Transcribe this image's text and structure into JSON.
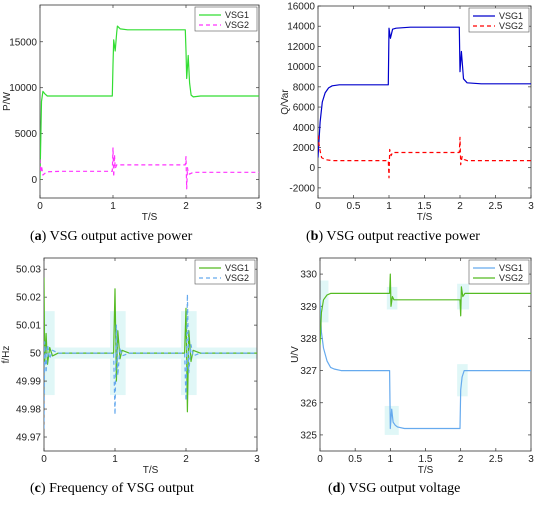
{
  "captions": [
    {
      "letter": "a",
      "text": "VSG output active power"
    },
    {
      "letter": "b",
      "text": "VSG output reactive power"
    },
    {
      "letter": "c",
      "text": "Frequency of VSG output"
    },
    {
      "letter": "d",
      "text": "VSG output voltage"
    }
  ],
  "colors": {
    "green": "#33dd33",
    "magenta": "#ff33ff",
    "blue": "#0000cc",
    "red": "#ff0000",
    "green_dark": "#55bb22",
    "light_blue": "#66aaee"
  },
  "chart_data": [
    {
      "type": "line",
      "xlabel": "T/S",
      "ylabel": "P/W",
      "xlim": [
        0,
        3
      ],
      "ylim": [
        -2000,
        19000
      ],
      "xticks": [
        "0",
        "1",
        "2",
        "3"
      ],
      "xtick_values": [
        0,
        1,
        2,
        3
      ],
      "yticks": [
        "0",
        "5000",
        "10000",
        "15000"
      ],
      "ytick_values": [
        0,
        5000,
        10000,
        15000
      ],
      "legend_position": "top-right",
      "series": [
        {
          "name": "VSG1",
          "color": "#33dd33",
          "dash": "solid",
          "x": [
            0,
            0.02,
            0.04,
            0.07,
            0.1,
            0.2,
            0.6,
            0.99,
            1.0,
            1.01,
            1.03,
            1.05,
            1.06,
            1.1,
            1.2,
            1.6,
            1.99,
            2.0,
            2.01,
            2.03,
            2.05,
            2.07,
            2.1,
            2.2,
            2.6,
            3.0
          ],
          "y": [
            0,
            8500,
            9600,
            9300,
            9100,
            9100,
            9100,
            9100,
            12500,
            15200,
            14000,
            16000,
            16700,
            16400,
            16300,
            16300,
            16300,
            14000,
            11000,
            13500,
            10500,
            9200,
            9000,
            9100,
            9100,
            9100
          ]
        },
        {
          "name": "VSG2",
          "color": "#ff33ff",
          "dash": "dashed",
          "x": [
            0,
            0.01,
            0.02,
            0.04,
            0.07,
            0.1,
            0.3,
            0.6,
            0.99,
            1.0,
            1.01,
            1.02,
            1.03,
            1.05,
            1.1,
            1.3,
            1.6,
            1.99,
            2.0,
            2.01,
            2.02,
            2.03,
            2.05,
            2.1,
            2.4,
            2.7,
            3.0
          ],
          "y": [
            2200,
            800,
            1500,
            500,
            700,
            850,
            900,
            900,
            900,
            3500,
            300,
            2700,
            1200,
            1600,
            1600,
            1600,
            1600,
            1600,
            2500,
            -1000,
            1300,
            700,
            600,
            800,
            800,
            800,
            800
          ]
        }
      ]
    },
    {
      "type": "line",
      "xlabel": "T/S",
      "ylabel": "Q/Var",
      "xlim": [
        0,
        3
      ],
      "ylim": [
        -3000,
        16000
      ],
      "xticks": [
        "0",
        "0.5",
        "1",
        "1.5",
        "2",
        "2.5",
        "3"
      ],
      "xtick_values": [
        0,
        0.5,
        1,
        1.5,
        2,
        2.5,
        3
      ],
      "yticks": [
        "-2000",
        "0",
        "2000",
        "4000",
        "6000",
        "8000",
        "10000",
        "12000",
        "14000",
        "16000"
      ],
      "ytick_values": [
        -2000,
        0,
        2000,
        4000,
        6000,
        8000,
        10000,
        12000,
        14000,
        16000
      ],
      "legend_position": "top-right",
      "series": [
        {
          "name": "VSG1",
          "color": "#0000cc",
          "dash": "solid",
          "x": [
            0,
            0.03,
            0.06,
            0.1,
            0.15,
            0.2,
            0.3,
            0.5,
            0.99,
            1.0,
            1.02,
            1.05,
            1.1,
            1.3,
            1.6,
            1.99,
            2.0,
            2.02,
            2.05,
            2.1,
            2.3,
            2.6,
            3.0
          ],
          "y": [
            1000,
            4500,
            6500,
            7400,
            7900,
            8100,
            8200,
            8200,
            8200,
            13800,
            12800,
            13700,
            13800,
            13900,
            13900,
            13900,
            9500,
            11500,
            8800,
            8400,
            8300,
            8300,
            8300
          ]
        },
        {
          "name": "VSG2",
          "color": "#ff0000",
          "dash": "dashed",
          "x": [
            0,
            0.02,
            0.05,
            0.1,
            0.2,
            0.5,
            0.99,
            1.0,
            1.01,
            1.03,
            1.05,
            1.1,
            1.5,
            1.99,
            2.0,
            2.01,
            2.03,
            2.06,
            2.1,
            2.5,
            3.0
          ],
          "y": [
            3200,
            2000,
            1000,
            800,
            700,
            700,
            700,
            -1000,
            1800,
            1200,
            1500,
            1500,
            1500,
            1500,
            3000,
            300,
            1100,
            800,
            700,
            700,
            700
          ]
        }
      ]
    },
    {
      "type": "line",
      "xlabel": "T/S",
      "ylabel": "f/Hz",
      "xlim": [
        0,
        3
      ],
      "ylim": [
        49.965,
        50.034
      ],
      "xticks": [
        "0",
        "1",
        "2",
        "3"
      ],
      "xtick_values": [
        0,
        1,
        2,
        3
      ],
      "yticks": [
        "49.97",
        "49.98",
        "49.99",
        "50",
        "50.01",
        "50.02",
        "50.03"
      ],
      "ytick_values": [
        49.97,
        49.98,
        49.99,
        50,
        50.01,
        50.02,
        50.03
      ],
      "legend_position": "top-right",
      "series": [
        {
          "name": "VSG1",
          "color": "#55bb22",
          "dash": "solid",
          "x": [
            0,
            0.01,
            0.03,
            0.05,
            0.08,
            0.12,
            0.2,
            0.6,
            0.98,
            1.0,
            1.02,
            1.04,
            1.07,
            1.1,
            1.2,
            1.6,
            1.98,
            2.0,
            2.02,
            2.04,
            2.07,
            2.1,
            2.2,
            2.6,
            3.0
          ],
          "y": [
            50.027,
            49.996,
            50.007,
            49.996,
            50.002,
            49.999,
            50.0,
            50.0,
            50.0,
            50.023,
            49.99,
            50.008,
            49.998,
            50.001,
            50.0,
            50.0,
            50.0,
            50.016,
            49.979,
            50.008,
            49.997,
            50.001,
            50.0,
            50.0,
            50.0
          ]
        },
        {
          "name": "VSG2",
          "color": "#66aaee",
          "dash": "dashed",
          "x": [
            0,
            0.01,
            0.03,
            0.05,
            0.08,
            0.12,
            0.2,
            0.6,
            0.98,
            1.0,
            1.02,
            1.04,
            1.07,
            1.1,
            1.2,
            1.6,
            1.98,
            2.0,
            2.02,
            2.04,
            2.07,
            2.1,
            2.2,
            2.6,
            3.0
          ],
          "y": [
            49.973,
            50.004,
            49.993,
            50.003,
            49.998,
            50.001,
            50.0,
            50.0,
            50.0,
            49.978,
            50.01,
            49.992,
            50.002,
            49.999,
            50.0,
            50.0,
            50.0,
            49.983,
            50.021,
            49.993,
            50.003,
            49.999,
            50.0,
            50.0,
            50.0
          ]
        }
      ]
    },
    {
      "type": "line",
      "xlabel": "T/S",
      "ylabel": "U/V",
      "xlim": [
        0,
        3
      ],
      "ylim": [
        324.5,
        330.5
      ],
      "xticks": [
        "0",
        "0.5",
        "1",
        "1.5",
        "2",
        "2.5",
        "3"
      ],
      "xtick_values": [
        0,
        0.5,
        1,
        1.5,
        2,
        2.5,
        3
      ],
      "yticks": [
        "325",
        "326",
        "327",
        "328",
        "329",
        "330"
      ],
      "ytick_values": [
        325,
        326,
        327,
        328,
        329,
        330
      ],
      "legend_position": "top-right",
      "series": [
        {
          "name": "VSG1",
          "color": "#66aaee",
          "dash": "solid",
          "x": [
            0,
            0.02,
            0.05,
            0.1,
            0.15,
            0.2,
            0.3,
            0.5,
            0.99,
            1.0,
            1.02,
            1.04,
            1.07,
            1.1,
            1.2,
            1.5,
            1.99,
            2.0,
            2.02,
            2.05,
            2.1,
            2.3,
            2.6,
            3.0
          ],
          "y": [
            329.2,
            328.2,
            327.7,
            327.3,
            327.1,
            327.05,
            327.0,
            327.0,
            327.0,
            325.2,
            325.8,
            325.4,
            325.3,
            325.25,
            325.2,
            325.2,
            325.2,
            326.4,
            326.8,
            327.0,
            327.0,
            327.0,
            327.0,
            327.0
          ]
        },
        {
          "name": "VSG2",
          "color": "#55bb22",
          "dash": "solid",
          "x": [
            0,
            0.02,
            0.05,
            0.1,
            0.15,
            0.2,
            0.3,
            0.5,
            0.99,
            1.0,
            1.01,
            1.03,
            1.05,
            1.1,
            1.3,
            1.6,
            1.99,
            2.0,
            2.01,
            2.03,
            2.06,
            2.1,
            2.4,
            2.7,
            3.0
          ],
          "y": [
            327.8,
            328.8,
            329.2,
            329.35,
            329.4,
            329.4,
            329.4,
            329.4,
            329.4,
            330.0,
            329.0,
            329.3,
            329.2,
            329.2,
            329.2,
            329.2,
            329.2,
            328.7,
            329.6,
            329.3,
            329.4,
            329.4,
            329.4,
            329.4,
            329.4
          ]
        }
      ]
    }
  ]
}
